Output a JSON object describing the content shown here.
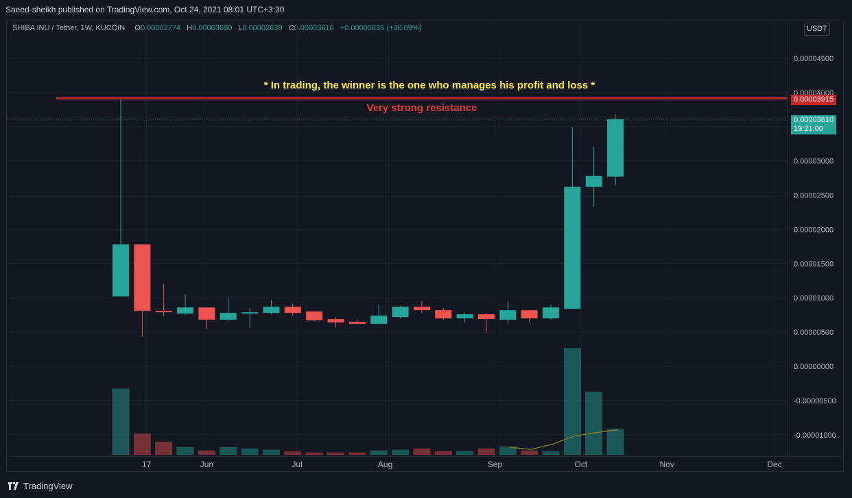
{
  "header": {
    "publisher": "Saeed-sheikh published on TradingView.com, Oct 24, 2021 08:01 UTC+3:30",
    "symbol": "SHIBA INU / Tether, 1W, KUCOIN",
    "ohlc": [
      {
        "k": "O",
        "v": "0.00002774"
      },
      {
        "k": "H",
        "v": "0.00003680"
      },
      {
        "k": "L",
        "v": "0.00002639"
      },
      {
        "k": "C",
        "v": "0.00003610"
      }
    ],
    "change": "+0.00000835 (+30.09%)"
  },
  "currency_button": "USDT",
  "footer": {
    "brand": "TradingView"
  },
  "colors": {
    "up": "#26a69a",
    "down": "#ef5350",
    "resistance": "#c62828",
    "annotation": "#ffeb3b",
    "background": "#131722"
  },
  "price_badges": {
    "resistance": "0.00003915",
    "last_price": "0.00003610",
    "countdown": "19:21:00"
  },
  "chart_data": {
    "type": "candlestick",
    "interval": "1W",
    "y_tick_labels": [
      "0.00004500",
      "0.00004000",
      "0.00003500",
      "0.00003000",
      "0.00002500",
      "0.00002000",
      "0.00001500",
      "0.00001000",
      "0.00000500",
      "0.00000000",
      "-0.00000500",
      "-0.00001000"
    ],
    "y_ticks": [
      4.5e-05,
      4e-05,
      3.5e-05,
      3e-05,
      2.5e-05,
      2e-05,
      1.5e-05,
      1e-05,
      5e-06,
      0,
      -5e-06,
      -1e-05
    ],
    "x_tick_labels": [
      {
        "label": "17",
        "index": 1.2
      },
      {
        "label": "Jun",
        "index": 4
      },
      {
        "label": "Jul",
        "index": 8.2
      },
      {
        "label": "Aug",
        "index": 12.3
      },
      {
        "label": "Sep",
        "index": 17.4
      },
      {
        "label": "Oct",
        "index": 21.4
      },
      {
        "label": "Nov",
        "index": 25.4
      },
      {
        "label": "Dec",
        "index": 30.4
      }
    ],
    "candles": [
      {
        "o": 1.02e-05,
        "h": 3.9e-05,
        "l": 1.02e-05,
        "c": 1.78e-05
      },
      {
        "o": 1.78e-05,
        "h": 1.78e-05,
        "l": 4.3e-06,
        "c": 8.1e-06
      },
      {
        "o": 8.1e-06,
        "h": 1.2e-05,
        "l": 7.3e-06,
        "c": 7.9e-06
      },
      {
        "o": 7.7e-06,
        "h": 1.05e-05,
        "l": 7.5e-06,
        "c": 8.6e-06
      },
      {
        "o": 8.6e-06,
        "h": 8.6e-06,
        "l": 5.4e-06,
        "c": 6.8e-06
      },
      {
        "o": 6.8e-06,
        "h": 1e-05,
        "l": 6.6e-06,
        "c": 7.8e-06
      },
      {
        "o": 7.7e-06,
        "h": 8.5e-06,
        "l": 5.6e-06,
        "c": 7.9e-06
      },
      {
        "o": 7.8e-06,
        "h": 9.7e-06,
        "l": 7.6e-06,
        "c": 8.7e-06
      },
      {
        "o": 8.7e-06,
        "h": 9.2e-06,
        "l": 7.4e-06,
        "c": 7.8e-06
      },
      {
        "o": 8e-06,
        "h": 8e-06,
        "l": 6.6e-06,
        "c": 6.7e-06
      },
      {
        "o": 6.9e-06,
        "h": 7.1e-06,
        "l": 5.7e-06,
        "c": 6.4e-06
      },
      {
        "o": 6.5e-06,
        "h": 6.9e-06,
        "l": 6.1e-06,
        "c": 6.2e-06
      },
      {
        "o": 6.2e-06,
        "h": 9e-06,
        "l": 6.1e-06,
        "c": 7.4e-06
      },
      {
        "o": 7.2e-06,
        "h": 8.8e-06,
        "l": 7e-06,
        "c": 8.7e-06
      },
      {
        "o": 8.7e-06,
        "h": 9.5e-06,
        "l": 7.8e-06,
        "c": 8.2e-06
      },
      {
        "o": 8.2e-06,
        "h": 8.5e-06,
        "l": 6.8e-06,
        "c": 7e-06
      },
      {
        "o": 7e-06,
        "h": 7.8e-06,
        "l": 6.4e-06,
        "c": 7.6e-06
      },
      {
        "o": 7.6e-06,
        "h": 7.8e-06,
        "l": 4.9e-06,
        "c": 6.9e-06
      },
      {
        "o": 6.8e-06,
        "h": 9.5e-06,
        "l": 6.2e-06,
        "c": 8.2e-06
      },
      {
        "o": 8.2e-06,
        "h": 8.2e-06,
        "l": 6.4e-06,
        "c": 7e-06
      },
      {
        "o": 7e-06,
        "h": 9e-06,
        "l": 6.8e-06,
        "c": 8.6e-06
      },
      {
        "o": 8.4e-06,
        "h": 3.5e-05,
        "l": 8.4e-06,
        "c": 2.62e-05
      },
      {
        "o": 2.62e-05,
        "h": 3.2e-05,
        "l": 2.33e-05,
        "c": 2.78e-05
      },
      {
        "o": 2.77e-05,
        "h": 3.68e-05,
        "l": 2.64e-05,
        "c": 3.61e-05
      }
    ],
    "volume": [
      9.85e-06,
      3.15e-06,
      1.95e-06,
      1.15e-06,
      6.5e-07,
      1.15e-06,
      9.5e-07,
      7.5e-07,
      5e-07,
      3.5e-07,
      3.5e-07,
      3.5e-07,
      6.5e-07,
      7.5e-07,
      9.5e-07,
      5.5e-07,
      5.5e-07,
      9.5e-07,
      1.25e-06,
      6.5e-07,
      5.5e-07,
      1.59e-05,
      9.4e-06,
      3.9e-06
    ],
    "volume_ma": [
      {
        "index": 18.1,
        "v": 1.1e-06
      },
      {
        "index": 19.1,
        "v": 8e-07
      },
      {
        "index": 20.1,
        "v": 1.6e-06
      },
      {
        "index": 21.1,
        "v": 2.8e-06
      },
      {
        "index": 22.1,
        "v": 3.3e-06
      },
      {
        "index": 23.1,
        "v": 3.7e-06
      }
    ],
    "lines": [
      {
        "name": "Very strong resistance",
        "price": 3.915e-05
      }
    ],
    "last_price": 3.61e-05,
    "annotations": [
      "* In trading, the winner is the one who manages his profit and loss *",
      "Very strong resistance"
    ]
  }
}
